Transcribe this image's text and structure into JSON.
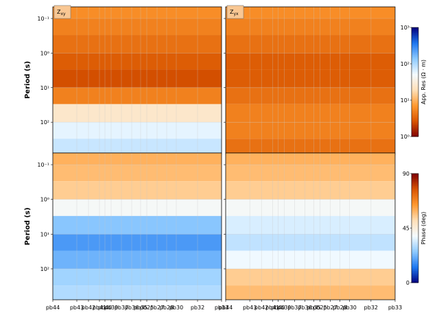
{
  "chart_data": {
    "type": "heatmap",
    "ylabel": "Period (s)",
    "xlim": [
      0,
      24.6
    ],
    "xticks": [
      {
        "value": 0,
        "label": "pb44"
      },
      {
        "value": 3.5,
        "label": "pb43"
      },
      {
        "value": 5.2,
        "label": "pb42"
      },
      {
        "value": 6.8,
        "label": "pb41"
      },
      {
        "value": 7.6,
        "label": "pb40"
      },
      {
        "value": 8.5,
        "label": "pb39"
      },
      {
        "value": 10.0,
        "label": "pb37"
      },
      {
        "value": 11.5,
        "label": "pb36"
      },
      {
        "value": 12.8,
        "label": "pb35"
      },
      {
        "value": 13.7,
        "label": "pb25"
      },
      {
        "value": 15.2,
        "label": "pb27"
      },
      {
        "value": 16.6,
        "label": "pb28"
      },
      {
        "value": 18.0,
        "label": "pb30"
      },
      {
        "value": 21.1,
        "label": "pb32"
      },
      {
        "value": 24.6,
        "label": "pb33"
      }
    ],
    "ylim": [
      0.046,
      776
    ],
    "yticks": [
      {
        "value": 0.1,
        "label": "10⁻¹"
      },
      {
        "value": 1,
        "label": "10⁰"
      },
      {
        "value": 10,
        "label": "10¹"
      },
      {
        "value": 100,
        "label": "10²"
      }
    ],
    "log_y": true,
    "grid": true,
    "colormap": [
      "#7f0000",
      "#d95500",
      "#ff9a30",
      "#ffe0b8",
      "#f4fbff",
      "#8fcbff",
      "#1e78f0",
      "#00007f"
    ],
    "panels": [
      {
        "label": "Z",
        "sub": "xy",
        "colorbar": 0,
        "period_edges": [
          0.046,
          0.1,
          0.3,
          1,
          3,
          10,
          30,
          100,
          300,
          776
        ],
        "values": [
          6,
          5,
          4,
          3,
          2.5,
          5,
          25,
          60,
          80
        ]
      },
      {
        "label": "Z",
        "sub": "yx",
        "colorbar": 0,
        "period_edges": [
          0.046,
          0.1,
          0.3,
          1,
          3,
          10,
          30,
          100,
          300,
          776
        ],
        "values": [
          6,
          5,
          4,
          3,
          3,
          4,
          5,
          5,
          4
        ]
      },
      {
        "colorbar": 1,
        "period_edges": [
          0.046,
          0.1,
          0.3,
          1,
          3,
          10,
          30,
          100,
          300,
          776
        ],
        "values": [
          60,
          58,
          55,
          40,
          25,
          18,
          22,
          28,
          30
        ]
      },
      {
        "colorbar": 1,
        "period_edges": [
          0.046,
          0.1,
          0.3,
          1,
          3,
          10,
          30,
          100,
          300,
          776
        ],
        "values": [
          60,
          58,
          55,
          40,
          35,
          32,
          38,
          55,
          58
        ]
      }
    ],
    "colorbars": [
      {
        "label": "App. Res (Ω · m)",
        "clim": [
          1,
          1000
        ],
        "log": true,
        "reverse": false,
        "ticks": [
          {
            "value": 1,
            "label": "10⁰"
          },
          {
            "value": 10,
            "label": "10¹"
          },
          {
            "value": 100,
            "label": "10²"
          },
          {
            "value": 1000,
            "label": "10³"
          }
        ]
      },
      {
        "label": "Phase (deg)",
        "clim": [
          0,
          90
        ],
        "log": false,
        "reverse": true,
        "ticks": [
          0,
          45,
          90
        ]
      }
    ]
  }
}
